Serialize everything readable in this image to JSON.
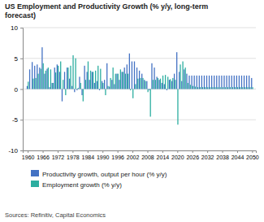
{
  "chart_data": {
    "type": "bar",
    "title": "US Employment and Productivity Growth (% y/y, long-term\nforecast)",
    "annotations": [
      "Sources: Refinitiv, Capital Economics"
    ],
    "x": [
      1960,
      1961,
      1962,
      1963,
      1964,
      1965,
      1966,
      1967,
      1968,
      1969,
      1970,
      1971,
      1972,
      1973,
      1974,
      1975,
      1976,
      1977,
      1978,
      1979,
      1980,
      1981,
      1982,
      1983,
      1984,
      1985,
      1986,
      1987,
      1988,
      1989,
      1990,
      1991,
      1992,
      1993,
      1994,
      1995,
      1996,
      1997,
      1998,
      1999,
      2000,
      2001,
      2002,
      2003,
      2004,
      2005,
      2006,
      2007,
      2008,
      2009,
      2010,
      2011,
      2012,
      2013,
      2014,
      2015,
      2016,
      2017,
      2018,
      2019,
      2020,
      2021,
      2022,
      2023,
      2024,
      2025,
      2026,
      2027,
      2028,
      2029,
      2030,
      2031,
      2032,
      2033,
      2034,
      2035,
      2036,
      2037,
      2038,
      2039,
      2040,
      2041,
      2042,
      2043,
      2044,
      2045,
      2046,
      2047,
      2048,
      2049,
      2050
    ],
    "series": [
      {
        "name": "Productivity growth, output per hour (% y/y)",
        "color": "#4472C4",
        "values": [
          0.5,
          3.2,
          4.4,
          3.8,
          4.0,
          3.5,
          6.8,
          2.5,
          3.3,
          0.3,
          1.0,
          3.5,
          4.0,
          2.8,
          -2.0,
          2.8,
          3.5,
          1.7,
          0.5,
          -0.5,
          -0.2,
          2.0,
          -1.0,
          3.8,
          2.8,
          1.5,
          2.8,
          1.0,
          1.3,
          -0.2,
          1.3,
          1.5,
          4.2,
          0.4,
          1.5,
          0.8,
          2.5,
          1.5,
          2.8,
          3.5,
          4.0,
          5.8,
          4.5,
          4.5,
          3.5,
          3.0,
          2.5,
          1.5,
          1.3,
          -0.2,
          4.2,
          3.5,
          2.0,
          1.5,
          1.0,
          0.8,
          -0.2,
          1.5,
          1.3,
          2.5,
          6.0,
          2.8,
          1.3,
          3.2,
          2.5,
          2.2,
          2.2,
          2.2,
          2.2,
          2.2,
          2.2,
          2.2,
          2.2,
          2.2,
          2.2,
          2.2,
          2.2,
          2.2,
          2.2,
          2.2,
          2.2,
          2.2,
          2.2,
          2.2,
          2.2,
          2.2,
          2.2,
          2.2,
          2.2,
          2.2,
          1.8
        ]
      },
      {
        "name": "Employment growth (% y/y)",
        "color": "#2CAEA0",
        "values": [
          1.2,
          0.0,
          1.7,
          1.8,
          2.5,
          3.3,
          4.2,
          3.0,
          3.5,
          3.2,
          1.0,
          2.7,
          3.8,
          4.5,
          1.5,
          -1.0,
          3.5,
          3.8,
          5.5,
          5.0,
          0.2,
          1.0,
          -2.0,
          1.5,
          4.5,
          3.0,
          2.8,
          3.0,
          3.8,
          3.3,
          1.0,
          -1.0,
          0.5,
          1.8,
          3.5,
          2.5,
          2.5,
          3.2,
          2.8,
          2.5,
          2.5,
          -0.2,
          -1.5,
          0.8,
          1.7,
          1.8,
          1.8,
          1.3,
          -0.5,
          -4.5,
          1.5,
          1.5,
          1.8,
          1.7,
          2.2,
          2.3,
          2.0,
          1.6,
          1.8,
          1.5,
          -5.8,
          4.0,
          4.5,
          3.5,
          1.0,
          0.7,
          0.5,
          0.4,
          0.3,
          0.3,
          0.3,
          0.3,
          0.3,
          0.3,
          0.3,
          0.3,
          0.3,
          0.3,
          0.3,
          0.3,
          0.3,
          0.3,
          0.3,
          0.3,
          0.3,
          0.3,
          0.3,
          0.3,
          0.3,
          0.3,
          0.3
        ]
      }
    ],
    "xlim": [
      1958.0,
      2051.5
    ],
    "xticks": [
      1960,
      1966,
      1972,
      1978,
      1984,
      1990,
      1996,
      2002,
      2008,
      2014,
      2020,
      2026,
      2032,
      2038,
      2044,
      2050
    ],
    "ylim": [
      -10,
      10
    ],
    "yticks": [
      -10,
      -5,
      0,
      5,
      10
    ],
    "grid": true,
    "legend": "bottom"
  }
}
